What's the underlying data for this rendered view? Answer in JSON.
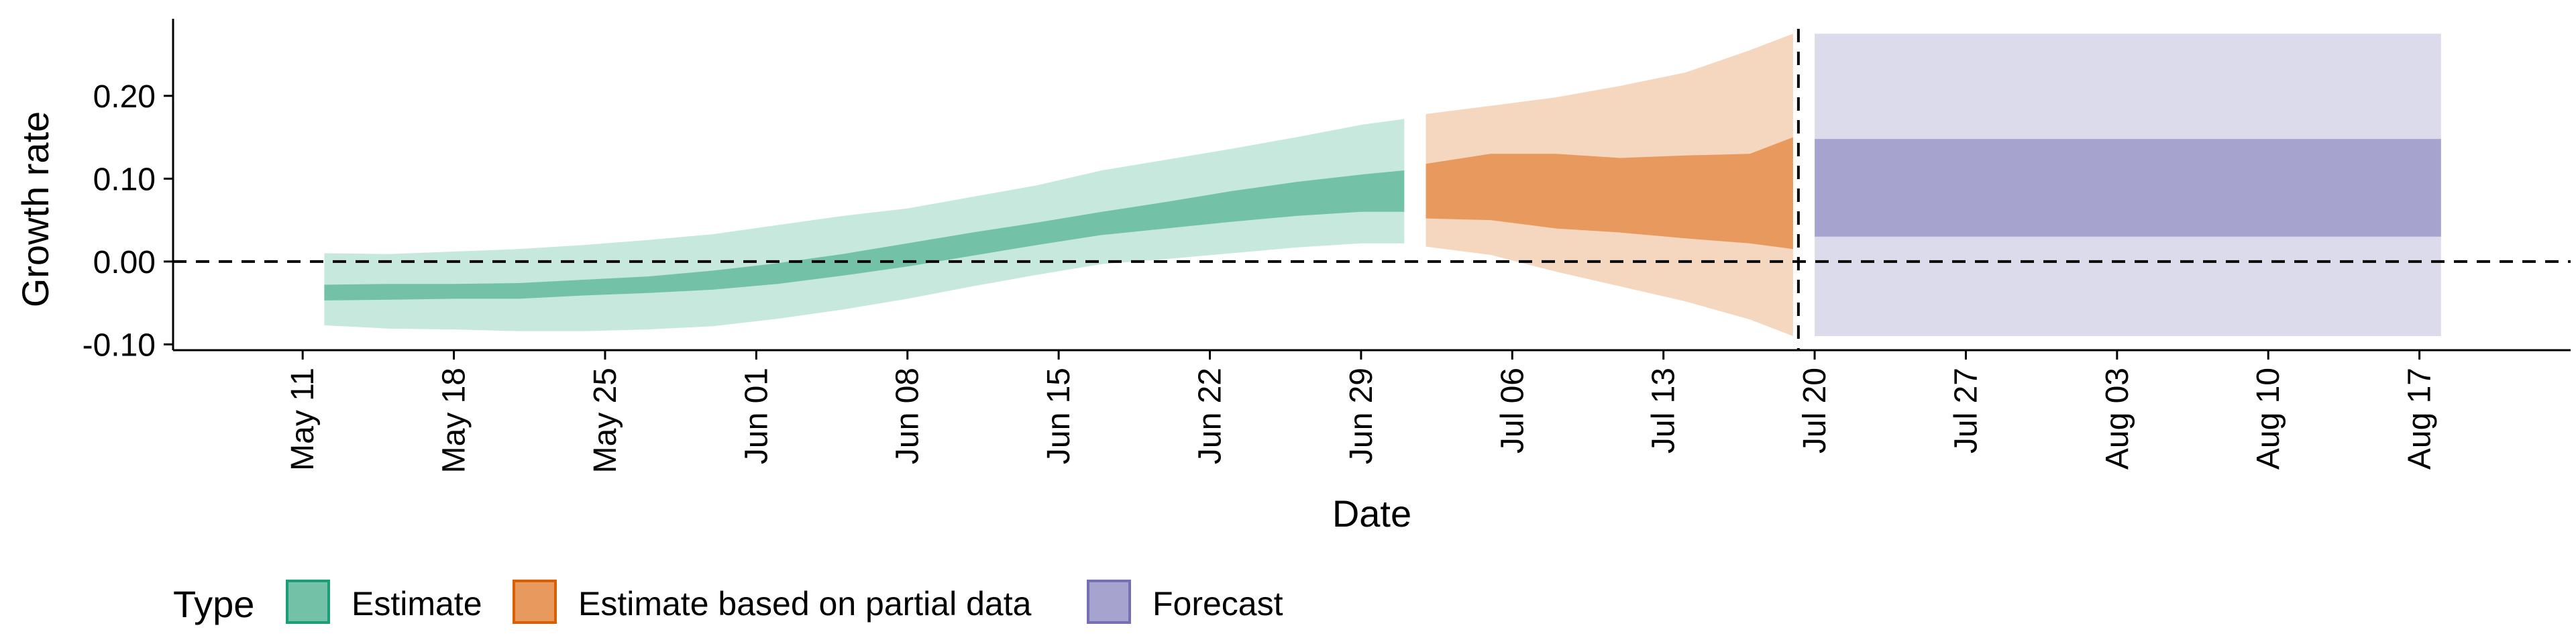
{
  "chart_data": {
    "type": "area",
    "xlabel": "Date",
    "ylabel": "Growth rate",
    "x_ticks": [
      "May 11",
      "May 18",
      "May 25",
      "Jun 01",
      "Jun 08",
      "Jun 15",
      "Jun 22",
      "Jun 29",
      "Jul 06",
      "Jul 13",
      "Jul 20",
      "Jul 27",
      "Aug 03",
      "Aug 10",
      "Aug 17"
    ],
    "x_tick_dates": [
      "2020-05-11",
      "2020-05-18",
      "2020-05-25",
      "2020-06-01",
      "2020-06-08",
      "2020-06-15",
      "2020-06-22",
      "2020-06-29",
      "2020-07-06",
      "2020-07-13",
      "2020-07-20",
      "2020-07-27",
      "2020-08-03",
      "2020-08-10",
      "2020-08-17"
    ],
    "y_ticks": [
      "-0.10",
      "0.00",
      "0.10",
      "0.20"
    ],
    "y_tick_values": [
      -0.1,
      0.0,
      0.1,
      0.2
    ],
    "xlim": [
      "2020-05-05",
      "2020-08-24"
    ],
    "ylim": [
      -0.107,
      0.293
    ],
    "hline": 0,
    "vline": "2020-07-19",
    "grid": false,
    "legend": {
      "title": "Type",
      "position": "bottom",
      "items": [
        {
          "label": "Estimate",
          "fill": "#73c2a8",
          "border": "#1b9e77"
        },
        {
          "label": "Estimate based on partial data",
          "fill": "#e89a5e",
          "border": "#d95f02"
        },
        {
          "label": "Forecast",
          "fill": "#a6a4ce",
          "border": "#7570b3"
        }
      ]
    },
    "series": [
      {
        "name": "Estimate",
        "outer_color": "#c6e8dd",
        "inner_color": "#73c2a8",
        "points": [
          {
            "date": "2020-05-12",
            "lo90": -0.077,
            "lo50": -0.047,
            "hi50": -0.028,
            "hi90": 0.01
          },
          {
            "date": "2020-05-15",
            "lo90": -0.081,
            "lo50": -0.046,
            "hi50": -0.027,
            "hi90": 0.009
          },
          {
            "date": "2020-05-18",
            "lo90": -0.082,
            "lo50": -0.045,
            "hi50": -0.027,
            "hi90": 0.012
          },
          {
            "date": "2020-05-21",
            "lo90": -0.084,
            "lo50": -0.045,
            "hi50": -0.026,
            "hi90": 0.015
          },
          {
            "date": "2020-05-24",
            "lo90": -0.084,
            "lo50": -0.041,
            "hi50": -0.022,
            "hi90": 0.02
          },
          {
            "date": "2020-05-27",
            "lo90": -0.082,
            "lo50": -0.038,
            "hi50": -0.018,
            "hi90": 0.026
          },
          {
            "date": "2020-05-30",
            "lo90": -0.078,
            "lo50": -0.034,
            "hi50": -0.011,
            "hi90": 0.033
          },
          {
            "date": "2020-06-02",
            "lo90": -0.069,
            "lo50": -0.027,
            "hi50": -0.002,
            "hi90": 0.044
          },
          {
            "date": "2020-06-05",
            "lo90": -0.058,
            "lo50": -0.017,
            "hi50": 0.009,
            "hi90": 0.055
          },
          {
            "date": "2020-06-08",
            "lo90": -0.045,
            "lo50": -0.006,
            "hi50": 0.022,
            "hi90": 0.064
          },
          {
            "date": "2020-06-11",
            "lo90": -0.03,
            "lo50": 0.007,
            "hi50": 0.035,
            "hi90": 0.078
          },
          {
            "date": "2020-06-14",
            "lo90": -0.016,
            "lo50": 0.02,
            "hi50": 0.047,
            "hi90": 0.092
          },
          {
            "date": "2020-06-17",
            "lo90": -0.003,
            "lo50": 0.032,
            "hi50": 0.06,
            "hi90": 0.11
          },
          {
            "date": "2020-06-20",
            "lo90": 0.003,
            "lo50": 0.04,
            "hi50": 0.072,
            "hi90": 0.123
          },
          {
            "date": "2020-06-23",
            "lo90": 0.01,
            "lo50": 0.048,
            "hi50": 0.085,
            "hi90": 0.136
          },
          {
            "date": "2020-06-26",
            "lo90": 0.017,
            "lo50": 0.055,
            "hi50": 0.096,
            "hi90": 0.15
          },
          {
            "date": "2020-06-29",
            "lo90": 0.022,
            "lo50": 0.06,
            "hi50": 0.105,
            "hi90": 0.165
          },
          {
            "date": "2020-07-01",
            "lo90": 0.022,
            "lo50": 0.06,
            "hi50": 0.11,
            "hi90": 0.172
          }
        ]
      },
      {
        "name": "Estimate based on partial data",
        "outer_color": "#f5d6bf",
        "inner_color": "#e89a5e",
        "points": [
          {
            "date": "2020-07-02",
            "lo90": 0.018,
            "lo50": 0.052,
            "hi50": 0.118,
            "hi90": 0.178
          },
          {
            "date": "2020-07-05",
            "lo90": 0.008,
            "lo50": 0.05,
            "hi50": 0.13,
            "hi90": 0.188
          },
          {
            "date": "2020-07-08",
            "lo90": -0.012,
            "lo50": 0.04,
            "hi50": 0.13,
            "hi90": 0.198
          },
          {
            "date": "2020-07-11",
            "lo90": -0.03,
            "lo50": 0.035,
            "hi50": 0.125,
            "hi90": 0.212
          },
          {
            "date": "2020-07-14",
            "lo90": -0.048,
            "lo50": 0.028,
            "hi50": 0.128,
            "hi90": 0.228
          },
          {
            "date": "2020-07-17",
            "lo90": -0.07,
            "lo50": 0.022,
            "hi50": 0.13,
            "hi90": 0.255
          },
          {
            "date": "2020-07-19",
            "lo90": -0.09,
            "lo50": 0.015,
            "hi50": 0.15,
            "hi90": 0.275
          }
        ]
      },
      {
        "name": "Forecast",
        "outer_color": "#dcdbec",
        "inner_color": "#a6a4ce",
        "points": [
          {
            "date": "2020-07-20",
            "lo90": -0.09,
            "lo50": 0.03,
            "hi50": 0.148,
            "hi90": 0.275
          },
          {
            "date": "2020-08-18",
            "lo90": -0.09,
            "lo50": 0.03,
            "hi50": 0.148,
            "hi90": 0.275
          }
        ]
      }
    ]
  }
}
